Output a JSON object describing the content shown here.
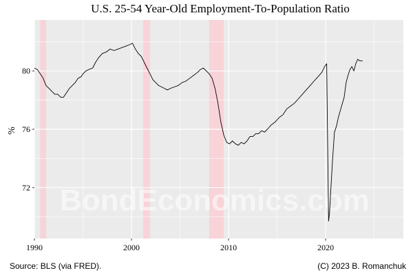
{
  "chart_data": {
    "type": "line",
    "title": "U.S. 25-54 Year-Old Employment-To-Population Ratio",
    "xlabel": "",
    "ylabel": "%",
    "xlim": [
      1990,
      2028
    ],
    "ylim": [
      68.5,
      83.5
    ],
    "x_ticks": [
      1990,
      2000,
      2010,
      2020
    ],
    "y_ticks": [
      72,
      76,
      80
    ],
    "grid": true,
    "line_color": "#000000",
    "panel_color": "#ebebeb",
    "recession_color": "#f8d3d8",
    "recessions": [
      {
        "start": 1990.6,
        "end": 1991.2
      },
      {
        "start": 2001.2,
        "end": 2001.9
      },
      {
        "start": 2008.0,
        "end": 2009.5
      }
    ],
    "series": [
      {
        "values": [
          [
            1990.0,
            80.2
          ],
          [
            1990.3,
            80.1
          ],
          [
            1990.6,
            79.8
          ],
          [
            1990.9,
            79.5
          ],
          [
            1991.2,
            79.0
          ],
          [
            1991.5,
            78.8
          ],
          [
            1991.8,
            78.6
          ],
          [
            1992.1,
            78.4
          ],
          [
            1992.4,
            78.4
          ],
          [
            1992.7,
            78.2
          ],
          [
            1993.0,
            78.2
          ],
          [
            1993.3,
            78.5
          ],
          [
            1993.6,
            78.8
          ],
          [
            1993.9,
            79.0
          ],
          [
            1994.2,
            79.2
          ],
          [
            1994.5,
            79.5
          ],
          [
            1994.8,
            79.6
          ],
          [
            1995.0,
            79.8
          ],
          [
            1995.3,
            80.0
          ],
          [
            1995.6,
            80.1
          ],
          [
            1996.0,
            80.2
          ],
          [
            1996.3,
            80.6
          ],
          [
            1996.6,
            80.9
          ],
          [
            1997.0,
            81.2
          ],
          [
            1997.4,
            81.3
          ],
          [
            1997.8,
            81.5
          ],
          [
            1998.2,
            81.4
          ],
          [
            1998.6,
            81.5
          ],
          [
            1999.0,
            81.6
          ],
          [
            1999.4,
            81.7
          ],
          [
            1999.8,
            81.8
          ],
          [
            2000.1,
            81.9
          ],
          [
            2000.4,
            81.5
          ],
          [
            2000.7,
            81.2
          ],
          [
            2001.0,
            81.0
          ],
          [
            2001.3,
            80.6
          ],
          [
            2001.6,
            80.2
          ],
          [
            2001.9,
            79.8
          ],
          [
            2002.2,
            79.4
          ],
          [
            2002.5,
            79.2
          ],
          [
            2002.8,
            79.0
          ],
          [
            2003.1,
            78.9
          ],
          [
            2003.4,
            78.8
          ],
          [
            2003.7,
            78.7
          ],
          [
            2004.0,
            78.8
          ],
          [
            2004.4,
            78.9
          ],
          [
            2004.8,
            79.0
          ],
          [
            2005.2,
            79.2
          ],
          [
            2005.6,
            79.3
          ],
          [
            2006.0,
            79.5
          ],
          [
            2006.4,
            79.7
          ],
          [
            2006.8,
            79.9
          ],
          [
            2007.1,
            80.1
          ],
          [
            2007.4,
            80.2
          ],
          [
            2007.7,
            80.0
          ],
          [
            2008.0,
            79.8
          ],
          [
            2008.3,
            79.5
          ],
          [
            2008.6,
            78.8
          ],
          [
            2008.9,
            77.8
          ],
          [
            2009.2,
            76.5
          ],
          [
            2009.5,
            75.6
          ],
          [
            2009.8,
            75.1
          ],
          [
            2010.1,
            75.0
          ],
          [
            2010.4,
            75.2
          ],
          [
            2010.7,
            75.0
          ],
          [
            2011.0,
            74.9
          ],
          [
            2011.3,
            75.1
          ],
          [
            2011.6,
            75.0
          ],
          [
            2011.9,
            75.2
          ],
          [
            2012.2,
            75.5
          ],
          [
            2012.5,
            75.5
          ],
          [
            2012.8,
            75.7
          ],
          [
            2013.1,
            75.7
          ],
          [
            2013.4,
            75.9
          ],
          [
            2013.7,
            75.8
          ],
          [
            2014.0,
            76.0
          ],
          [
            2014.4,
            76.3
          ],
          [
            2014.8,
            76.5
          ],
          [
            2015.2,
            76.8
          ],
          [
            2015.6,
            77.0
          ],
          [
            2016.0,
            77.4
          ],
          [
            2016.4,
            77.6
          ],
          [
            2016.8,
            77.8
          ],
          [
            2017.2,
            78.1
          ],
          [
            2017.6,
            78.4
          ],
          [
            2018.0,
            78.7
          ],
          [
            2018.4,
            79.0
          ],
          [
            2018.8,
            79.3
          ],
          [
            2019.2,
            79.6
          ],
          [
            2019.6,
            79.9
          ],
          [
            2019.9,
            80.3
          ],
          [
            2020.1,
            80.5
          ],
          [
            2020.2,
            75.0
          ],
          [
            2020.3,
            69.7
          ],
          [
            2020.4,
            70.3
          ],
          [
            2020.5,
            71.5
          ],
          [
            2020.7,
            73.8
          ],
          [
            2020.9,
            75.8
          ],
          [
            2021.1,
            76.2
          ],
          [
            2021.3,
            76.8
          ],
          [
            2021.6,
            77.5
          ],
          [
            2021.9,
            78.2
          ],
          [
            2022.1,
            79.2
          ],
          [
            2022.3,
            79.7
          ],
          [
            2022.5,
            80.1
          ],
          [
            2022.7,
            80.3
          ],
          [
            2022.9,
            80.0
          ],
          [
            2023.1,
            80.5
          ],
          [
            2023.3,
            80.8
          ],
          [
            2023.5,
            80.7
          ],
          [
            2023.8,
            80.7
          ]
        ]
      }
    ]
  },
  "footer": {
    "source": "Source: BLS (via FRED).",
    "copyright": "(C) 2023 B. Romanchuk"
  },
  "watermark": "BondEconomics.com"
}
